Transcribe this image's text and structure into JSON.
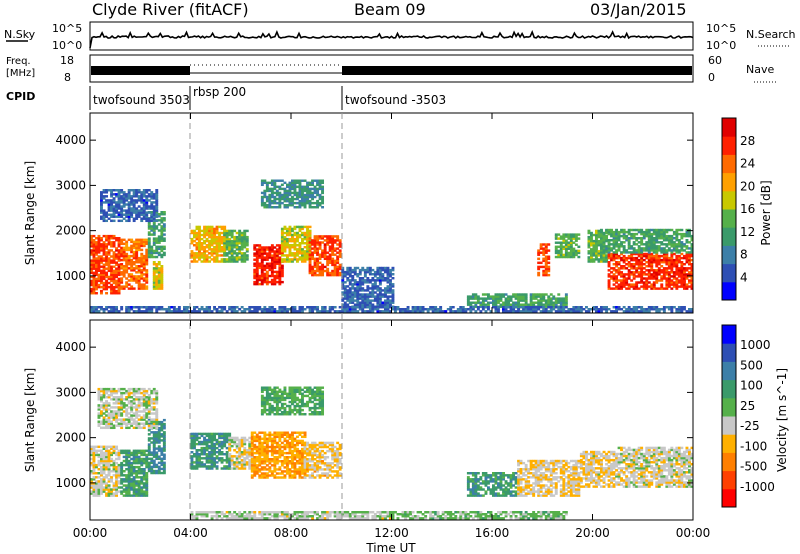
{
  "header": {
    "station": "Clyde River (fitACF)",
    "beam": "Beam 09",
    "date": "03/Jan/2015"
  },
  "top_panels": {
    "nsky_label": "N.Sky",
    "nsky_ticks": [
      "10^5",
      "10^0"
    ],
    "nsearch_label": "N.Search",
    "nsearch_ticks": [
      "10^5",
      "10^0"
    ],
    "freq_label": "Freq.",
    "freq_unit": "[MHz]",
    "freq_ticks": [
      "18",
      "8"
    ],
    "nave_label": "Nave",
    "nave_ticks": [
      "60",
      "0"
    ],
    "cpid_label": "CPID",
    "cpid_segments": [
      {
        "label": "twofsound 3503",
        "start": 0,
        "end": 4
      },
      {
        "label": "rbsp 200",
        "start": 4,
        "end": 10
      },
      {
        "label": "twofsound -3503",
        "start": 10,
        "end": 24
      }
    ]
  },
  "x_axis": {
    "label": "Time UT",
    "ticks": [
      "00:00",
      "04:00",
      "08:00",
      "12:00",
      "16:00",
      "20:00",
      "00:00"
    ]
  },
  "chart_data": [
    {
      "type": "heatmap",
      "quantity": "Power",
      "ylabel": "Slant Range [km]",
      "colorbar_label": "Power [dB]",
      "colorbar_ticks": [
        "28",
        "24",
        "20",
        "16",
        "12",
        "8",
        "4"
      ],
      "ylim": [
        180,
        4600
      ],
      "yticks": [
        "4000",
        "3000",
        "2000",
        "1000"
      ],
      "yticks_values": [
        4000,
        3000,
        2000,
        1000
      ],
      "xlim": [
        0,
        24
      ],
      "value_range": [
        0,
        32
      ],
      "colors": [
        "#0000ff",
        "#2e4fb4",
        "#3c7fa8",
        "#3a9a6a",
        "#55b04a",
        "#c8c800",
        "#ffa000",
        "#ff6a00",
        "#ff2000",
        "#e00000"
      ],
      "regions": [
        {
          "t": [
            0.0,
            1.2
          ],
          "r": [
            600,
            1900
          ],
          "v": 26
        },
        {
          "t": [
            1.2,
            2.3
          ],
          "r": [
            700,
            1800
          ],
          "v": 24
        },
        {
          "t": [
            2.3,
            3.0
          ],
          "r": [
            1400,
            2400
          ],
          "v": 12
        },
        {
          "t": [
            2.5,
            2.9
          ],
          "r": [
            700,
            1300
          ],
          "v": 18
        },
        {
          "t": [
            0.4,
            2.7
          ],
          "r": [
            2200,
            2900
          ],
          "v": 6
        },
        {
          "t": [
            4.0,
            5.3
          ],
          "r": [
            1300,
            2100
          ],
          "v": 20
        },
        {
          "t": [
            5.3,
            6.2
          ],
          "r": [
            1300,
            2000
          ],
          "v": 14
        },
        {
          "t": [
            6.5,
            7.6
          ],
          "r": [
            800,
            1700
          ],
          "v": 28
        },
        {
          "t": [
            7.6,
            8.7
          ],
          "r": [
            1300,
            2100
          ],
          "v": 18
        },
        {
          "t": [
            8.7,
            9.9
          ],
          "r": [
            1000,
            1900
          ],
          "v": 26
        },
        {
          "t": [
            6.8,
            9.2
          ],
          "r": [
            2500,
            3100
          ],
          "v": 10
        },
        {
          "t": [
            10.0,
            12.0
          ],
          "r": [
            300,
            1200
          ],
          "v": 6
        },
        {
          "t": [
            15.0,
            19.0
          ],
          "r": [
            300,
            600
          ],
          "v": 12
        },
        {
          "t": [
            17.8,
            18.3
          ],
          "r": [
            1000,
            1700
          ],
          "v": 26
        },
        {
          "t": [
            18.5,
            19.5
          ],
          "r": [
            1400,
            1900
          ],
          "v": 14
        },
        {
          "t": [
            19.8,
            20.6
          ],
          "r": [
            1300,
            2000
          ],
          "v": 14
        },
        {
          "t": [
            20.6,
            24.0
          ],
          "r": [
            700,
            1500
          ],
          "v": 27
        },
        {
          "t": [
            20.3,
            24.0
          ],
          "r": [
            1500,
            2000
          ],
          "v": 12
        },
        {
          "t": [
            0.0,
            24.0
          ],
          "r": [
            200,
            330
          ],
          "v": 6
        }
      ]
    },
    {
      "type": "heatmap",
      "quantity": "Velocity",
      "ylabel": "Slant Range [km]",
      "colorbar_label": "Velocity [m s^-1]",
      "colorbar_ticks": [
        "1000",
        "500",
        "100",
        "25",
        "-25",
        "-100",
        "-500",
        "-1000"
      ],
      "ylim": [
        180,
        4600
      ],
      "yticks": [
        "4000",
        "3000",
        "2000",
        "1000"
      ],
      "yticks_values": [
        4000,
        3000,
        2000,
        1000
      ],
      "xlim": [
        0,
        24
      ],
      "value_range": [
        -1100,
        1100
      ],
      "colors": [
        "#ff0000",
        "#ff4000",
        "#ff7f00",
        "#ffb000",
        "#c8c8c8",
        "#55b04a",
        "#3a9a6a",
        "#3c7fa8",
        "#2e4fb4",
        "#0000ff"
      ],
      "regions": [
        {
          "t": [
            0.0,
            1.2
          ],
          "r": [
            700,
            1800
          ],
          "v": -120
        },
        {
          "t": [
            1.2,
            2.3
          ],
          "r": [
            700,
            1700
          ],
          "v": 300
        },
        {
          "t": [
            2.3,
            3.0
          ],
          "r": [
            1200,
            2400
          ],
          "v": 450
        },
        {
          "t": [
            0.3,
            2.7
          ],
          "r": [
            2200,
            3100
          ],
          "v": -80
        },
        {
          "t": [
            4.0,
            5.5
          ],
          "r": [
            1300,
            2100
          ],
          "v": 380
        },
        {
          "t": [
            5.5,
            6.4
          ],
          "r": [
            1300,
            2000
          ],
          "v": -150
        },
        {
          "t": [
            6.4,
            8.5
          ],
          "r": [
            1100,
            2100
          ],
          "v": -420
        },
        {
          "t": [
            8.5,
            9.9
          ],
          "r": [
            1100,
            1900
          ],
          "v": -250
        },
        {
          "t": [
            6.8,
            9.2
          ],
          "r": [
            2500,
            3100
          ],
          "v": 200
        },
        {
          "t": [
            4.0,
            12.0
          ],
          "r": [
            200,
            360
          ],
          "v": -40
        },
        {
          "t": [
            12.0,
            19.0
          ],
          "r": [
            200,
            380
          ],
          "v": 60
        },
        {
          "t": [
            15.0,
            17.0
          ],
          "r": [
            700,
            1200
          ],
          "v": 350
        },
        {
          "t": [
            17.0,
            19.5
          ],
          "r": [
            700,
            1500
          ],
          "v": -200
        },
        {
          "t": [
            19.5,
            21.0
          ],
          "r": [
            900,
            1700
          ],
          "v": -180
        },
        {
          "t": [
            21.0,
            24.0
          ],
          "r": [
            900,
            1800
          ],
          "v": -130
        }
      ]
    }
  ]
}
